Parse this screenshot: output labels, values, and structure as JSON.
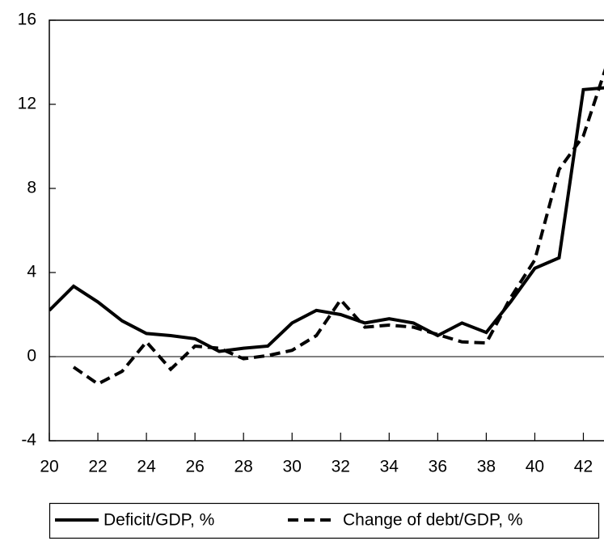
{
  "chart_data": {
    "type": "line",
    "x": [
      20,
      21,
      22,
      23,
      24,
      25,
      26,
      27,
      28,
      29,
      30,
      31,
      32,
      33,
      34,
      35,
      36,
      37,
      38,
      39,
      40,
      41,
      42,
      43
    ],
    "series": [
      {
        "name": "Deficit/GDP, %",
        "color": "#000000",
        "dash": "solid",
        "values": [
          2.2,
          3.35,
          2.6,
          1.7,
          1.1,
          1.0,
          0.85,
          0.25,
          0.4,
          0.5,
          1.6,
          2.2,
          2.0,
          1.6,
          1.8,
          1.6,
          1.0,
          1.6,
          1.15,
          2.6,
          4.2,
          4.7,
          12.7,
          12.8
        ]
      },
      {
        "name": "Change of debt/GDP, %",
        "color": "#000000",
        "dash": "dashed",
        "values": [
          null,
          -0.5,
          -1.3,
          -0.7,
          0.7,
          -0.6,
          0.5,
          0.4,
          -0.1,
          0.05,
          0.3,
          1.0,
          2.7,
          1.4,
          1.5,
          1.4,
          1.05,
          0.7,
          0.65,
          2.8,
          4.6,
          8.9,
          10.5,
          14.0
        ]
      }
    ],
    "xlim": [
      20,
      42.85
    ],
    "xticks": [
      20,
      22,
      24,
      26,
      28,
      30,
      32,
      34,
      36,
      38,
      40,
      42
    ],
    "ylim": [
      -4,
      16
    ],
    "yticks": [
      -4,
      0,
      4,
      8,
      12,
      16
    ],
    "zero_line": true,
    "grid": false,
    "legend": "bottom"
  }
}
